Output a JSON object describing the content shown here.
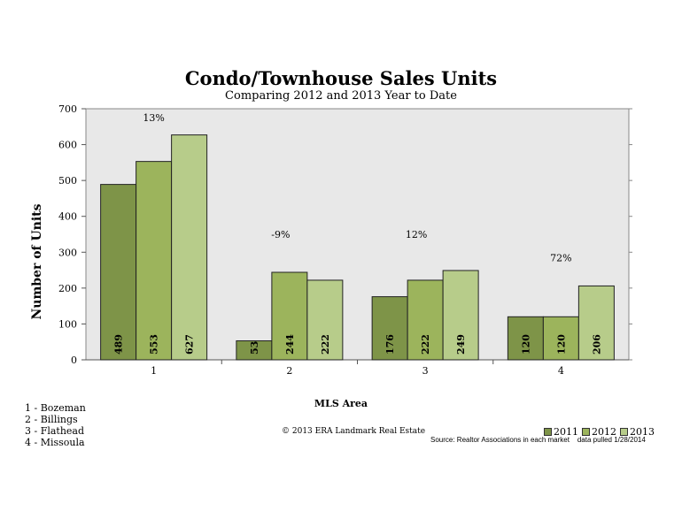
{
  "chart_data": {
    "type": "bar",
    "title": "Condo/Townhouse Sales Units",
    "subtitle": "Comparing 2012 and 2013 Year to Date",
    "xlabel": "MLS Area",
    "ylabel": "Number of Units",
    "ylim": [
      0,
      700
    ],
    "yticks": [
      "0",
      "100",
      "200",
      "300",
      "400",
      "500",
      "600",
      "700"
    ],
    "categories": [
      "1",
      "2",
      "3",
      "4"
    ],
    "series": [
      {
        "name": "2011",
        "color": "#7e9448",
        "values": [
          489,
          53,
          176,
          120
        ]
      },
      {
        "name": "2012",
        "color": "#9cb45c",
        "values": [
          553,
          244,
          222,
          120
        ]
      },
      {
        "name": "2013",
        "color": "#b7cc8a",
        "values": [
          627,
          222,
          249,
          206
        ]
      }
    ],
    "annotations": [
      "13%",
      "-9%",
      "12%",
      "72%"
    ],
    "legend_position": "bottom-right"
  },
  "area_key": [
    "1 - Bozeman",
    "2 - Billings",
    "3 - Flathead",
    "4 - Missoula"
  ],
  "copyright": "© 2013 ERA Landmark Real Estate",
  "source": "Source: Realtor Associations in each market    data pulled 1/28/2014"
}
